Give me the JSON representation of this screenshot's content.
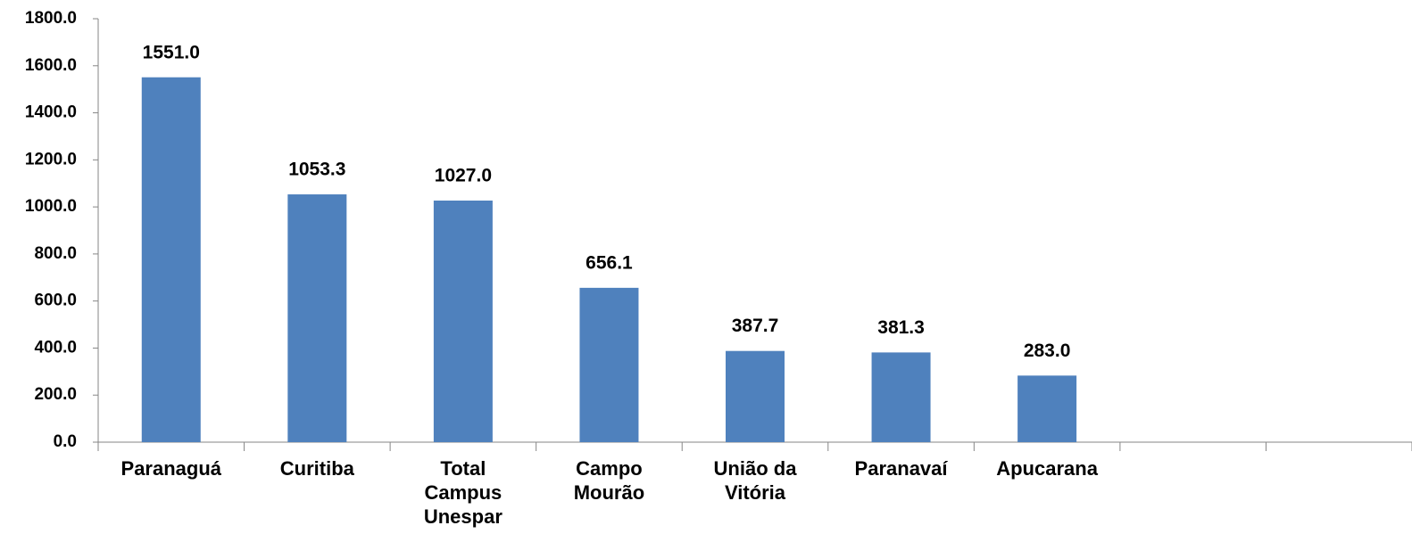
{
  "chart_data": {
    "type": "bar",
    "categories": [
      "Paranaguá",
      "Curitiba",
      "Total Campus Unespar",
      "Campo Mourão",
      "União da Vitória",
      "Paranavaí",
      "Apucarana",
      null,
      null
    ],
    "values": [
      1551.0,
      1053.3,
      1027.0,
      656.1,
      387.7,
      381.3,
      283.0,
      null,
      null
    ],
    "value_labels": [
      "1551.0",
      "1053.3",
      "1027.0",
      "656.1",
      "387.7",
      "381.3",
      "283.0",
      null,
      null
    ],
    "color": "#4f81bd",
    "ylim": [
      0,
      1800
    ],
    "yticks": [
      {
        "value": 0,
        "label": "0.0"
      },
      {
        "value": 200,
        "label": "200.0"
      },
      {
        "value": 400,
        "label": "400.0"
      },
      {
        "value": 600,
        "label": "600.0"
      },
      {
        "value": 800,
        "label": "800.0"
      },
      {
        "value": 1000,
        "label": "1000.0"
      },
      {
        "value": 1200,
        "label": "1200.0"
      },
      {
        "value": 1400,
        "label": "1400.0"
      },
      {
        "value": 1600,
        "label": "1600.0"
      },
      {
        "value": 1800,
        "label": "1800.0"
      }
    ],
    "grid": false
  }
}
